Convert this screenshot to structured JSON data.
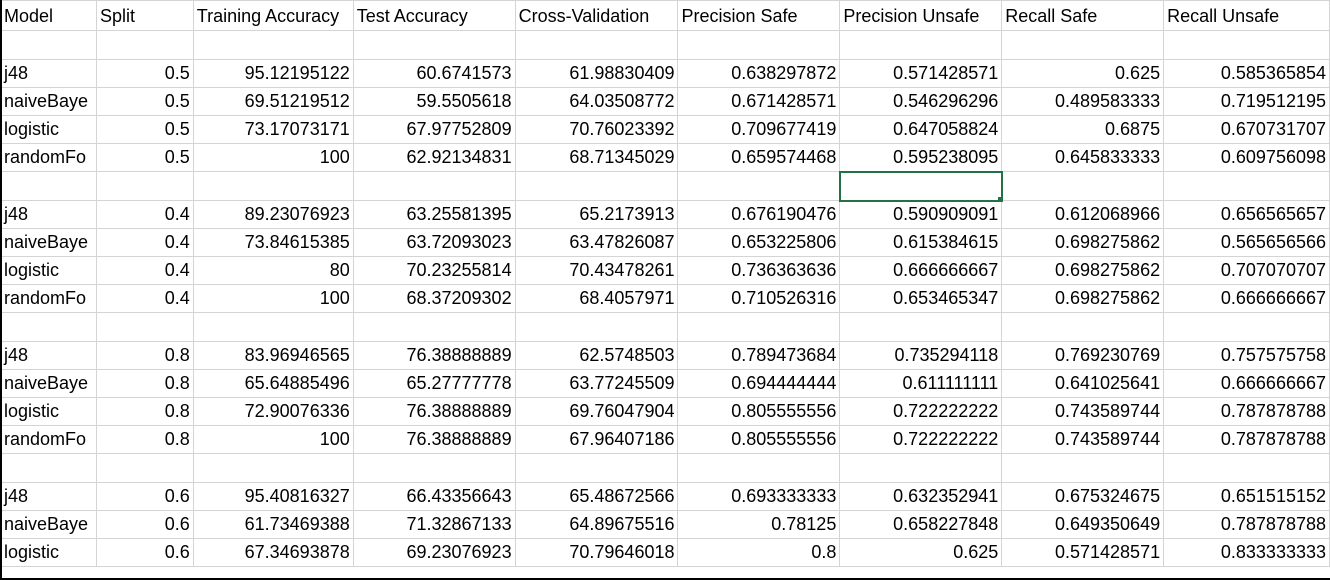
{
  "headers": [
    "Model",
    "Split",
    "Training Accuracy",
    "Test Accuracy",
    "Cross-Validation",
    "Precision Safe",
    "Precision Unsafe",
    "Recall Safe",
    "Recall Unsafe"
  ],
  "rows": [
    null,
    [
      "j48",
      "0.5",
      "95.12195122",
      "60.6741573",
      "61.98830409",
      "0.638297872",
      "0.571428571",
      "0.625",
      "0.585365854"
    ],
    [
      "naiveBaye",
      "0.5",
      "69.51219512",
      "59.5505618",
      "64.03508772",
      "0.671428571",
      "0.546296296",
      "0.489583333",
      "0.719512195"
    ],
    [
      "logistic",
      "0.5",
      "73.17073171",
      "67.97752809",
      "70.76023392",
      "0.709677419",
      "0.647058824",
      "0.6875",
      "0.670731707"
    ],
    [
      "randomFo",
      "0.5",
      "100",
      "62.92134831",
      "68.71345029",
      "0.659574468",
      "0.595238095",
      "0.645833333",
      "0.609756098"
    ],
    null,
    [
      "j48",
      "0.4",
      "89.23076923",
      "63.25581395",
      "65.2173913",
      "0.676190476",
      "0.590909091",
      "0.612068966",
      "0.656565657"
    ],
    [
      "naiveBaye",
      "0.4",
      "73.84615385",
      "63.72093023",
      "63.47826087",
      "0.653225806",
      "0.615384615",
      "0.698275862",
      "0.565656566"
    ],
    [
      "logistic",
      "0.4",
      "80",
      "70.23255814",
      "70.43478261",
      "0.736363636",
      "0.666666667",
      "0.698275862",
      "0.707070707"
    ],
    [
      "randomFo",
      "0.4",
      "100",
      "68.37209302",
      "68.4057971",
      "0.710526316",
      "0.653465347",
      "0.698275862",
      "0.666666667"
    ],
    null,
    [
      "j48",
      "0.8",
      "83.96946565",
      "76.38888889",
      "62.5748503",
      "0.789473684",
      "0.735294118",
      "0.769230769",
      "0.757575758"
    ],
    [
      "naiveBaye",
      "0.8",
      "65.64885496",
      "65.27777778",
      "63.77245509",
      "0.694444444",
      "0.611111111",
      "0.641025641",
      "0.666666667"
    ],
    [
      "logistic",
      "0.8",
      "72.90076336",
      "76.38888889",
      "69.76047904",
      "0.805555556",
      "0.722222222",
      "0.743589744",
      "0.787878788"
    ],
    [
      "randomFo",
      "0.8",
      "100",
      "76.38888889",
      "67.96407186",
      "0.805555556",
      "0.722222222",
      "0.743589744",
      "0.787878788"
    ],
    null,
    [
      "j48",
      "0.6",
      "95.40816327",
      "66.43356643",
      "65.48672566",
      "0.693333333",
      "0.632352941",
      "0.675324675",
      "0.651515152"
    ],
    [
      "naiveBaye",
      "0.6",
      "61.73469388",
      "71.32867133",
      "64.89675516",
      "0.78125",
      "0.658227848",
      "0.649350649",
      "0.787878788"
    ],
    [
      "logistic",
      "0.6",
      "67.34693878",
      "69.23076923",
      "70.79646018",
      "0.8",
      "0.625",
      "0.571428571",
      "0.833333333"
    ]
  ],
  "selection": {
    "row": 5,
    "col": 6
  },
  "colors": {
    "gridline": "#d4d4d4",
    "selection": "#217346"
  }
}
